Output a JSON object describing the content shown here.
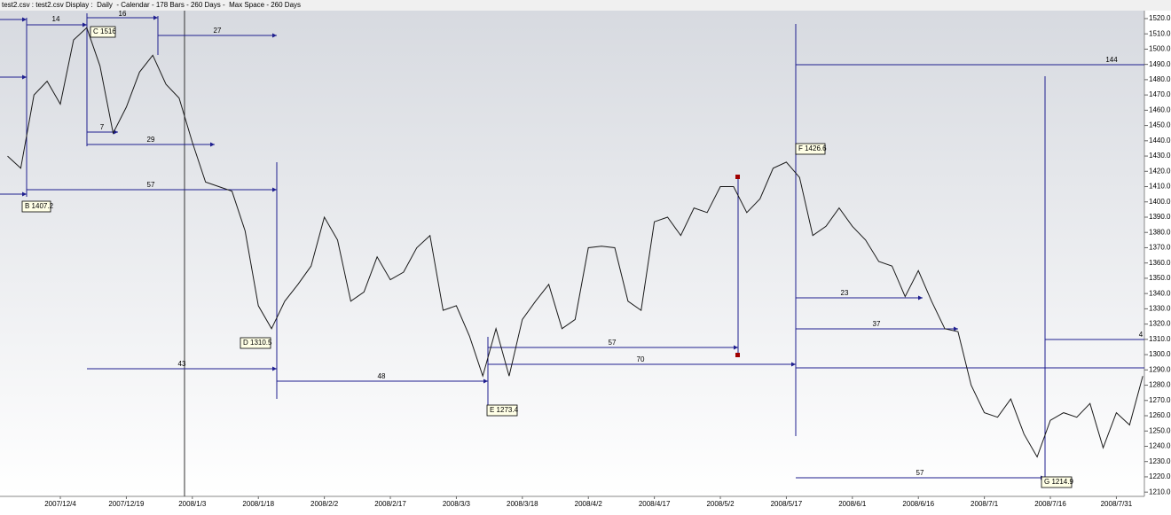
{
  "header": {
    "title": "test2.csv : test2.csv Display :  Daily  - Calendar - 178 Bars - 260 Days -  Max Space - 260 Days"
  },
  "chart_data": {
    "type": "line",
    "color": "#1a1a1a",
    "categories": [
      null,
      null,
      null,
      null,
      "2007/12/4",
      null,
      null,
      null,
      null,
      "2007/12/19",
      null,
      null,
      null,
      null,
      "2008/1/3",
      null,
      null,
      null,
      null,
      "2008/1/18",
      null,
      null,
      null,
      null,
      "2008/2/2",
      null,
      null,
      null,
      null,
      "2008/2/17",
      null,
      null,
      null,
      null,
      "2008/3/3",
      null,
      null,
      null,
      null,
      "2008/3/18",
      null,
      null,
      null,
      null,
      "2008/4/2",
      null,
      null,
      null,
      null,
      "2008/4/17",
      null,
      null,
      null,
      null,
      "2008/5/2",
      null,
      null,
      null,
      null,
      "2008/5/17",
      null,
      null,
      null,
      null,
      "2008/6/1",
      null,
      null,
      null,
      null,
      "2008/6/16",
      null,
      null,
      null,
      null,
      "2008/7/1",
      null,
      null,
      null,
      null,
      "2008/7/16",
      null,
      null,
      null,
      null,
      "2008/7/31",
      null,
      null
    ],
    "values": [
      1430,
      1422,
      1470,
      1479,
      1464,
      1506,
      1514,
      1489,
      1445,
      1462,
      1485,
      1496,
      1477,
      1468,
      1439,
      1413,
      1410,
      1407,
      1381,
      1332,
      1317,
      1335,
      1346,
      1358,
      1390,
      1375,
      1335,
      1341,
      1364,
      1349,
      1354,
      1370,
      1378,
      1329,
      1332,
      1312,
      1286,
      1317,
      1286,
      1323,
      1335,
      1346,
      1317,
      1323,
      1370,
      1371,
      1370,
      1335,
      1329,
      1387,
      1390,
      1378,
      1396,
      1393,
      1410,
      1410,
      1393,
      1402,
      1422,
      1426,
      1416,
      1378,
      1384,
      1396,
      1384,
      1375,
      1361,
      1358,
      1338,
      1355,
      1335,
      1317,
      1315,
      1280,
      1262,
      1259,
      1271,
      1248,
      1233,
      1257,
      1262,
      1259,
      1268,
      1239,
      1262,
      1254,
      1286
    ],
    "ylim": [
      1207.2,
      1525.2
    ],
    "yticks": [
      {
        "value": 1520,
        "label": "1520.0"
      },
      {
        "value": 1510,
        "label": "1510.0"
      },
      {
        "value": 1500,
        "label": "1500.0"
      },
      {
        "value": 1490,
        "label": "1490.0"
      },
      {
        "value": 1480,
        "label": "1480.0"
      },
      {
        "value": 1470,
        "label": "1470.0"
      },
      {
        "value": 1460,
        "label": "1460.0"
      },
      {
        "value": 1450,
        "label": "1450.0"
      },
      {
        "value": 1440,
        "label": "1440.0"
      },
      {
        "value": 1430,
        "label": "1430.0"
      },
      {
        "value": 1420,
        "label": "1420.0"
      },
      {
        "value": 1410,
        "label": "1410.0"
      },
      {
        "value": 1400,
        "label": "1400.0"
      },
      {
        "value": 1390,
        "label": "1390.0"
      },
      {
        "value": 1380,
        "label": "1380.0"
      },
      {
        "value": 1370,
        "label": "1370.0"
      },
      {
        "value": 1360,
        "label": "1360.0"
      },
      {
        "value": 1350,
        "label": "1350.0"
      },
      {
        "value": 1340,
        "label": "1340.0"
      },
      {
        "value": 1330,
        "label": "1330.0"
      },
      {
        "value": 1320,
        "label": "1320.0"
      },
      {
        "value": 1310,
        "label": "1310.0"
      },
      {
        "value": 1300,
        "label": "1300.0"
      },
      {
        "value": 1290,
        "label": "1290.0"
      },
      {
        "value": 1280,
        "label": "1280.0"
      },
      {
        "value": 1270,
        "label": "1270.0"
      },
      {
        "value": 1260,
        "label": "1260.0"
      },
      {
        "value": 1250,
        "label": "1250.0"
      },
      {
        "value": 1240,
        "label": "1240.0"
      },
      {
        "value": 1230,
        "label": "1230.0"
      },
      {
        "value": 1220,
        "label": "1220.0"
      },
      {
        "value": 1210,
        "label": "1210.0"
      }
    ],
    "pivots": [
      "B 1407.2",
      "C 1516",
      "D 1310.5",
      "E 1273.4",
      "F 1426.6",
      "G 1214.9"
    ],
    "cycles": [
      "14",
      "16",
      "27",
      "7",
      "29",
      "57",
      "43",
      "48",
      "57",
      "70",
      "144",
      "23",
      "37",
      "57",
      "4"
    ]
  }
}
